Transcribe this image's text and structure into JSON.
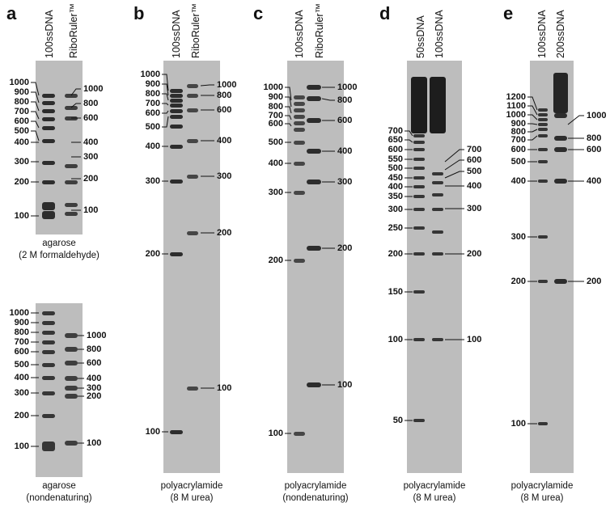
{
  "panels": {
    "a": {
      "letter": "a",
      "lanes": [
        "100ssDNA",
        "RiboRuler™"
      ],
      "top": {
        "left_labels": [
          "1000",
          "900",
          "800",
          "700",
          "600",
          "500",
          "400",
          "300",
          "200",
          "100"
        ],
        "right_labels": [
          "1000",
          "800",
          "600",
          "400",
          "300",
          "200",
          "100"
        ],
        "caption": [
          "agarose",
          "(2 M formaldehyde)"
        ]
      },
      "bottom": {
        "left_labels": [
          "1000",
          "900",
          "800",
          "700",
          "600",
          "500",
          "400",
          "300",
          "200",
          "100"
        ],
        "right_labels": [
          "1000",
          "800",
          "600",
          "400",
          "300",
          "200",
          "100"
        ],
        "caption": [
          "agarose",
          "(nondenaturing)"
        ]
      }
    },
    "b": {
      "letter": "b",
      "lanes": [
        "100ssDNA",
        "RiboRuler™"
      ],
      "left_labels": [
        "1000",
        "900",
        "800",
        "700",
        "600",
        "500",
        "400",
        "300",
        "200",
        "100"
      ],
      "right_labels": [
        "1000",
        "800",
        "600",
        "400",
        "300",
        "200",
        "100"
      ],
      "caption": [
        "polyacrylamide",
        "(8 M urea)"
      ]
    },
    "c": {
      "letter": "c",
      "lanes": [
        "100ssDNA",
        "RiboRuler™"
      ],
      "left_labels": [
        "1000",
        "900",
        "800",
        "700",
        "600",
        "500",
        "400",
        "300",
        "200",
        "100"
      ],
      "right_labels": [
        "1000",
        "800",
        "600",
        "400",
        "300",
        "200",
        "100"
      ],
      "caption": [
        "polyacrylamide",
        "(nondenaturing)"
      ]
    },
    "d": {
      "letter": "d",
      "lanes": [
        "50ssDNA",
        "100ssDNA"
      ],
      "left_labels": [
        "700",
        "650",
        "600",
        "550",
        "500",
        "450",
        "400",
        "350",
        "300",
        "250",
        "200",
        "150",
        "100",
        "50"
      ],
      "right_labels": [
        "700",
        "600",
        "500",
        "400",
        "300",
        "200",
        "100"
      ],
      "caption": [
        "polyacrylamide",
        "(8 M urea)"
      ]
    },
    "e": {
      "letter": "e",
      "lanes": [
        "100ssDNA",
        "200ssDNA"
      ],
      "left_labels": [
        "1200",
        "1100",
        "1000",
        "900",
        "800",
        "700",
        "600",
        "500",
        "400",
        "300",
        "200",
        "100"
      ],
      "right_labels": [
        "1000",
        "800",
        "600",
        "400",
        "200"
      ],
      "caption": [
        "polyacrylamide",
        "(8 M urea)"
      ]
    }
  },
  "colors": {
    "gel": "#bdbdbd",
    "band": "#141414",
    "text": "#111111"
  }
}
